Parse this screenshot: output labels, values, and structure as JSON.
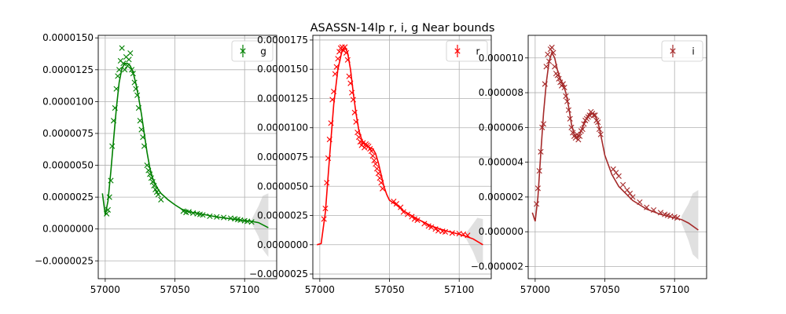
{
  "figure": {
    "title": "ASASSN-14lp  r, i, g Near bounds"
  },
  "chart_data": [
    {
      "type": "line",
      "band": "g",
      "color": "#008000",
      "legend": {
        "label": "g",
        "placement": "top-right"
      },
      "xlim": [
        56995,
        57123
      ],
      "ylim": [
        -3.9e-06,
        1.52e-05
      ],
      "xticks": [
        57000,
        57050,
        57100
      ],
      "yticks": [
        -2.5e-06,
        0.0,
        2.5e-06,
        5e-06,
        7.5e-06,
        1e-05,
        1.25e-05,
        1.5e-05
      ],
      "ytick_labels": [
        "−0.0000025",
        "0.0000000",
        "0.0000025",
        "0.0000050",
        "0.0000075",
        "0.0000100",
        "0.0000125",
        "0.0000150"
      ],
      "grid": true,
      "model": {
        "x": [
          56998,
          57000,
          57002,
          57004,
          57006,
          57008,
          57010,
          57012,
          57014,
          57016,
          57018,
          57020,
          57022,
          57024,
          57026,
          57028,
          57030,
          57032,
          57034,
          57036,
          57038,
          57040,
          57045,
          57050,
          57055,
          57060,
          57070,
          57080,
          57090,
          57100,
          57105,
          57110,
          57117
        ],
        "y": [
          2.8e-06,
          1.1e-06,
          2.2e-06,
          4.5e-06,
          7e-06,
          9.5e-06,
          1.15e-05,
          1.26e-05,
          1.3e-05,
          1.3e-05,
          1.28e-05,
          1.23e-05,
          1.14e-05,
          1.03e-05,
          9e-06,
          7.5e-06,
          6e-06,
          4.8e-06,
          4e-06,
          3.5e-06,
          3.1e-06,
          2.8e-06,
          2.3e-06,
          1.9e-06,
          1.55e-06,
          1.35e-06,
          1.15e-06,
          9.5e-07,
          8e-07,
          6.5e-07,
          6e-07,
          5e-07,
          1e-07
        ]
      },
      "band_extrap": {
        "x": [
          57105,
          57110,
          57113,
          57117
        ],
        "upper": [
          7.5e-07,
          1.8e-06,
          2.6e-06,
          2.8e-06
        ],
        "lower": [
          4.5e-07,
          -6e-07,
          -1.6e-06,
          -2.2e-06
        ]
      },
      "points": {
        "x": [
          57001,
          57002,
          57003,
          57004,
          57005,
          57006,
          57007,
          57008,
          57009,
          57010,
          57011,
          57012,
          57013,
          57014,
          57015,
          57016,
          57017,
          57018,
          57019,
          57020,
          57021,
          57022,
          57023,
          57024,
          57025,
          57026,
          57027,
          57028,
          57030,
          57031,
          57032,
          57033,
          57034,
          57035,
          57036,
          57037,
          57038,
          57040,
          57056,
          57058,
          57060,
          57063,
          57066,
          57068,
          57070,
          57075,
          57080,
          57085,
          57090,
          57093,
          57095,
          57097,
          57100,
          57102,
          57105
        ],
        "y": [
          1.2e-06,
          1.5e-06,
          2.5e-06,
          3.8e-06,
          6.5e-06,
          8.5e-06,
          9.5e-06,
          1.1e-05,
          1.2e-05,
          1.25e-05,
          1.32e-05,
          1.42e-05,
          1.3e-05,
          1.25e-05,
          1.35e-05,
          1.28e-05,
          1.33e-05,
          1.38e-05,
          1.25e-05,
          1.22e-05,
          1.15e-05,
          1.1e-05,
          1.05e-05,
          9.5e-06,
          8.5e-06,
          7.8e-06,
          7.2e-06,
          6.5e-06,
          5e-06,
          4.6e-06,
          4.3e-06,
          4e-06,
          3.7e-06,
          3.4e-06,
          3.1e-06,
          2.9e-06,
          2.7e-06,
          2.3e-06,
          1.4e-06,
          1.3e-06,
          1.35e-06,
          1.25e-06,
          1.2e-06,
          1.15e-06,
          1.1e-06,
          1e-06,
          9.5e-07,
          9e-07,
          8.5e-07,
          8e-07,
          7.5e-07,
          7e-07,
          6.5e-07,
          6e-07,
          5.5e-07
        ]
      }
    },
    {
      "type": "line",
      "band": "r",
      "color": "#ff0000",
      "legend": {
        "label": "r",
        "placement": "top-right"
      },
      "xlim": [
        56995,
        57123
      ],
      "ylim": [
        -2.9e-06,
        1.79e-05
      ],
      "xticks": [
        57000,
        57050,
        57100
      ],
      "yticks": [
        -2.5e-06,
        0.0,
        2.5e-06,
        5e-06,
        7.5e-06,
        1e-05,
        1.25e-05,
        1.5e-05,
        1.75e-05
      ],
      "ytick_labels": [
        "−0.0000025",
        "0.0000000",
        "0.0000025",
        "0.0000050",
        "0.0000075",
        "0.0000100",
        "0.0000125",
        "0.0000150",
        "0.0000175"
      ],
      "grid": true,
      "model": {
        "x": [
          56998,
          57001,
          57004,
          57007,
          57010,
          57013,
          57016,
          57018,
          57020,
          57022,
          57024,
          57026,
          57028,
          57030,
          57032,
          57034,
          57036,
          57038,
          57040,
          57042,
          57044,
          57046,
          57048,
          57050,
          57055,
          57060,
          57070,
          57080,
          57090,
          57100,
          57105,
          57110,
          57117
        ],
        "y": [
          0.0,
          1e-07,
          2.8e-06,
          7.5e-06,
          1.2e-05,
          1.5e-05,
          1.66e-05,
          1.69e-05,
          1.64e-05,
          1.5e-05,
          1.3e-05,
          1.12e-05,
          9.8e-06,
          9e-06,
          8.6e-06,
          8.4e-06,
          8.3e-06,
          8.2e-06,
          7.8e-06,
          7e-06,
          6e-06,
          5e-06,
          4.3e-06,
          3.8e-06,
          3.4e-06,
          2.9e-06,
          2.2e-06,
          1.6e-06,
          1.2e-06,
          9e-07,
          7e-07,
          5e-07,
          0.0
        ]
      },
      "band_extrap": {
        "x": [
          57105,
          57110,
          57113,
          57117
        ],
        "upper": [
          1e-06,
          1.8e-06,
          2.3e-06,
          2.2e-06
        ],
        "lower": [
          5e-07,
          -6e-07,
          -1.5e-06,
          -1.8e-06
        ]
      },
      "points": {
        "x": [
          57003,
          57004,
          57005,
          57006,
          57007,
          57008,
          57009,
          57010,
          57011,
          57012,
          57013,
          57014,
          57015,
          57016,
          57017,
          57018,
          57019,
          57020,
          57021,
          57022,
          57023,
          57024,
          57025,
          57026,
          57027,
          57028,
          57029,
          57030,
          57031,
          57032,
          57033,
          57034,
          57035,
          57036,
          57037,
          57038,
          57039,
          57040,
          57041,
          57042,
          57043,
          57044,
          57045,
          57053,
          57055,
          57058,
          57060,
          57063,
          57066,
          57068,
          57070,
          57075,
          57078,
          57080,
          57083,
          57085,
          57088,
          57090,
          57095,
          57100,
          57103,
          57106
        ],
        "y": [
          2.2e-06,
          3.1e-06,
          5.3e-06,
          7.4e-06,
          9e-06,
          1.04e-05,
          1.24e-05,
          1.31e-05,
          1.46e-05,
          1.52e-05,
          1.59e-05,
          1.65e-05,
          1.68e-05,
          1.69e-05,
          1.66e-05,
          1.69e-05,
          1.64e-05,
          1.58e-05,
          1.44e-05,
          1.38e-05,
          1.3e-05,
          1.24e-05,
          1.13e-05,
          1.05e-05,
          9.6e-06,
          9.2e-06,
          8.8e-06,
          8.5e-06,
          8.7e-06,
          8.3e-06,
          8.6e-06,
          8.5e-06,
          8.4e-06,
          8.2e-06,
          8e-06,
          7.6e-06,
          7.2e-06,
          6.9e-06,
          6.5e-06,
          6.1e-06,
          5.7e-06,
          5.3e-06,
          4.8e-06,
          3.7e-06,
          3.5e-06,
          3.2e-06,
          2.8e-06,
          2.6e-06,
          2.4e-06,
          2.2e-06,
          2.1e-06,
          1.8e-06,
          1.6e-06,
          1.5e-06,
          1.35e-06,
          1.2e-06,
          1.15e-06,
          1.1e-06,
          1e-06,
          9.5e-07,
          9e-07,
          8e-07
        ]
      }
    },
    {
      "type": "line",
      "band": "i",
      "color": "#a52a2a",
      "legend": {
        "label": "i",
        "placement": "top-right"
      },
      "xlim": [
        56995,
        57123
      ],
      "ylim": [
        -2.7e-06,
        1.13e-05
      ],
      "xticks": [
        57000,
        57050,
        57100
      ],
      "yticks": [
        -2e-06,
        0.0,
        2e-06,
        4e-06,
        6e-06,
        8e-06,
        1e-05
      ],
      "ytick_labels": [
        "−0.000002",
        "0.000000",
        "0.000002",
        "0.000004",
        "0.000006",
        "0.000008",
        "0.000010"
      ],
      "grid": true,
      "model": {
        "x": [
          56998,
          57000,
          57002,
          57004,
          57006,
          57008,
          57010,
          57012,
          57014,
          57016,
          57018,
          57020,
          57022,
          57024,
          57026,
          57028,
          57030,
          57032,
          57034,
          57036,
          57038,
          57040,
          57042,
          57044,
          57046,
          57048,
          57050,
          57055,
          57060,
          57070,
          57080,
          57090,
          57100,
          57105,
          57110,
          57117
        ],
        "y": [
          1.1e-06,
          6e-07,
          2e-06,
          4.5e-06,
          6.8e-06,
          8.6e-06,
          9.8e-06,
          1.03e-05,
          1e-05,
          9.3e-06,
          8.8e-06,
          8.5e-06,
          8e-06,
          7.2e-06,
          6.2e-06,
          5.6e-06,
          5.4e-06,
          5.6e-06,
          6e-06,
          6.4e-06,
          6.7e-06,
          6.8e-06,
          6.8e-06,
          6.5e-06,
          6e-06,
          5.2e-06,
          4.4e-06,
          3.3e-06,
          2.6e-06,
          1.8e-06,
          1.3e-06,
          1e-06,
          8e-07,
          7e-07,
          5e-07,
          1e-07
        ]
      },
      "band_extrap": {
        "x": [
          57105,
          57110,
          57113,
          57117
        ],
        "upper": [
          9e-07,
          1.6e-06,
          2.2e-06,
          2.4e-06
        ],
        "lower": [
          5e-07,
          -5e-07,
          -1.3e-06,
          -1.6e-06
        ]
      },
      "points": {
        "x": [
          57001,
          57002,
          57003,
          57004,
          57005,
          57006,
          57007,
          57008,
          57009,
          57010,
          57011,
          57012,
          57013,
          57014,
          57015,
          57016,
          57017,
          57018,
          57019,
          57020,
          57021,
          57022,
          57023,
          57024,
          57025,
          57026,
          57027,
          57028,
          57029,
          57030,
          57031,
          57032,
          57033,
          57034,
          57035,
          57036,
          57037,
          57038,
          57039,
          57040,
          57041,
          57042,
          57043,
          57044,
          57045,
          57046,
          57047,
          57056,
          57058,
          57060,
          57063,
          57066,
          57068,
          57070,
          57075,
          57080,
          57085,
          57090,
          57093,
          57095,
          57097,
          57100,
          57102
        ],
        "y": [
          1.6e-06,
          2.5e-06,
          3.5e-06,
          4.6e-06,
          6e-06,
          6.2e-06,
          8.5e-06,
          9.5e-06,
          1.02e-05,
          9.8e-06,
          1.05e-05,
          1.06e-05,
          1.03e-05,
          9.5e-06,
          9.1e-06,
          9e-06,
          8.8e-06,
          8.6e-06,
          8.4e-06,
          8.5e-06,
          8.3e-06,
          7.8e-06,
          7.5e-06,
          7e-06,
          6.5e-06,
          6e-06,
          5.7e-06,
          5.5e-06,
          5.4e-06,
          5.6e-06,
          5.3e-06,
          5.5e-06,
          5.8e-06,
          5.9e-06,
          6.2e-06,
          6.4e-06,
          6.5e-06,
          6.6e-06,
          6.7e-06,
          6.9e-06,
          6.8e-06,
          6.7e-06,
          6.7e-06,
          6.4e-06,
          6.3e-06,
          5.9e-06,
          5.6e-06,
          3.6e-06,
          3.4e-06,
          3.2e-06,
          2.7e-06,
          2.4e-06,
          2.2e-06,
          2e-06,
          1.7e-06,
          1.4e-06,
          1.25e-06,
          1.1e-06,
          1e-06,
          9.5e-07,
          9e-07,
          8.5e-07,
          8e-07
        ]
      }
    }
  ]
}
